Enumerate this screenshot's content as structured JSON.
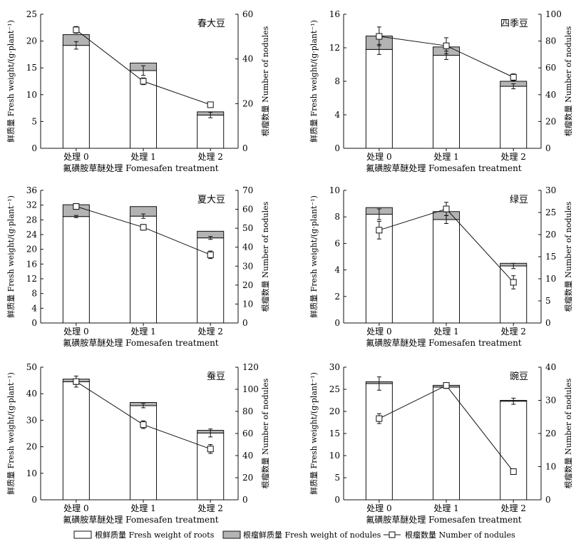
{
  "chart_data": [
    {
      "type": "bar",
      "title": "春大豆",
      "categories": [
        "处理 0",
        "处理 1",
        "处理 2"
      ],
      "xlabel": "氟磺胺草醚处理 Fomesafen treatment",
      "ylabel": "鲜质量 Fresh weight/(g·plant⁻¹)",
      "y2label": "根瘤数量 Number of nodules",
      "ylim": [
        0,
        25
      ],
      "y2lim": [
        0,
        60
      ],
      "yticks": [
        0,
        5,
        10,
        15,
        20,
        25
      ],
      "y2ticks": [
        0,
        20,
        40,
        60
      ],
      "series": [
        {
          "name": "根鲜质量 Fresh weight of roots",
          "values": [
            19.2,
            14.5,
            6.2
          ],
          "errors": [
            0.7,
            0.9,
            0.5
          ]
        },
        {
          "name": "根瘤鲜质量 Fresh weight of nodules",
          "values": [
            2.0,
            1.4,
            0.6
          ]
        },
        {
          "name": "根瘤数量 Number of nodules",
          "values": [
            53.0,
            30.0,
            19.5
          ],
          "errors": [
            1.5,
            1.5,
            0.5
          ]
        }
      ]
    },
    {
      "type": "bar",
      "title": "四季豆",
      "categories": [
        "处理 0",
        "处理 1",
        "处理 2"
      ],
      "xlabel": "氟磺胺草醚处理 Fomesafen treatment",
      "ylabel": "鲜质量 Fresh weight/(g·plant⁻¹)",
      "y2label": "根瘤数量 Number of nodules",
      "ylim": [
        0,
        16
      ],
      "y2lim": [
        0,
        100
      ],
      "yticks": [
        0,
        4,
        8,
        12,
        16
      ],
      "y2ticks": [
        0,
        20,
        40,
        60,
        80,
        100
      ],
      "series": [
        {
          "name": "根鲜质量 Fresh weight of roots",
          "values": [
            11.8,
            11.1,
            7.4
          ],
          "errors": [
            0.6,
            0.5,
            0.3
          ]
        },
        {
          "name": "根瘤鲜质量 Fresh weight of nodules",
          "values": [
            1.6,
            1.0,
            0.6
          ]
        },
        {
          "name": "根瘤数量 Number of nodules",
          "values": [
            83.5,
            76.5,
            53.0
          ],
          "errors": [
            7.0,
            6.0,
            2.5
          ]
        }
      ]
    },
    {
      "type": "bar",
      "title": "夏大豆",
      "categories": [
        "处理 0",
        "处理 1",
        "处理 2"
      ],
      "xlabel": "氟磺胺草醚处理 Fomesafen treatment",
      "ylabel": "鲜质量 Fresh weight/(g·plant⁻¹)",
      "y2label": "根瘤数量 Number of nodules",
      "ylim": [
        0,
        36
      ],
      "y2lim": [
        0,
        70
      ],
      "yticks": [
        0,
        4,
        8,
        12,
        16,
        20,
        24,
        28,
        32,
        36
      ],
      "y2ticks": [
        0,
        10,
        20,
        30,
        40,
        50,
        60,
        70
      ],
      "series": [
        {
          "name": "根鲜质量 Fresh weight of roots",
          "values": [
            28.9,
            29.0,
            23.1
          ],
          "errors": [
            0.3,
            0.6,
            0.4
          ]
        },
        {
          "name": "根瘤鲜质量 Fresh weight of nodules",
          "values": [
            3.2,
            2.6,
            1.8
          ]
        },
        {
          "name": "根瘤数量 Number of nodules",
          "values": [
            61.5,
            50.5,
            36.0
          ],
          "errors": [
            1.5,
            1.5,
            2.0
          ]
        }
      ]
    },
    {
      "type": "bar",
      "title": "绿豆",
      "categories": [
        "处理 0",
        "处理 1",
        "处理 2"
      ],
      "xlabel": "氟磺胺草醚处理 Fomesafen treatment",
      "ylabel": "鲜质量 Fresh weight/(g·plant⁻¹)",
      "y2label": "根瘤数量 Number of nodules",
      "ylim": [
        0,
        10
      ],
      "y2lim": [
        0,
        30
      ],
      "yticks": [
        0,
        2,
        4,
        6,
        8,
        10
      ],
      "y2ticks": [
        0,
        5,
        10,
        15,
        20,
        25,
        30
      ],
      "series": [
        {
          "name": "根鲜质量 Fresh weight of roots",
          "values": [
            8.2,
            7.8,
            4.3
          ],
          "errors": [
            0.4,
            0.3,
            0.2
          ]
        },
        {
          "name": "根瘤鲜质量 Fresh weight of nodules",
          "values": [
            0.5,
            0.6,
            0.2
          ]
        },
        {
          "name": "根瘤数量 Number of nodules",
          "values": [
            21.0,
            25.8,
            9.2
          ],
          "errors": [
            2.0,
            1.5,
            1.5
          ]
        }
      ]
    },
    {
      "type": "bar",
      "title": "蚕豆",
      "categories": [
        "处理 0",
        "处理 1",
        "处理 2"
      ],
      "xlabel": "氟磺胺草醚处理 Fomesafen treatment",
      "ylabel": "鲜质量 Fresh weight/(g·plant⁻¹)",
      "y2label": "根瘤数量 Number of nodules",
      "ylim": [
        0,
        50
      ],
      "y2lim": [
        0,
        120
      ],
      "yticks": [
        0,
        10,
        20,
        30,
        40,
        50
      ],
      "y2ticks": [
        0,
        20,
        40,
        60,
        80,
        100,
        120
      ],
      "series": [
        {
          "name": "根鲜质量 Fresh weight of roots",
          "values": [
            44.5,
            35.5,
            25.2
          ],
          "errors": [
            1.0,
            0.8,
            1.5
          ]
        },
        {
          "name": "根瘤鲜质量 Fresh weight of nodules",
          "values": [
            1.0,
            1.2,
            1.0
          ]
        },
        {
          "name": "根瘤数量 Number of nodules",
          "values": [
            107.0,
            68.0,
            46.0
          ],
          "errors": [
            5.0,
            3.5,
            4.0
          ]
        }
      ]
    },
    {
      "type": "bar",
      "title": "豌豆",
      "categories": [
        "处理 0",
        "处理 1",
        "处理 2"
      ],
      "xlabel": "氟磺胺草醚处理 Fomesafen treatment",
      "ylabel": "鲜质量 Fresh weight/(g·plant⁻¹)",
      "y2label": "根瘤数量 Number of nodules",
      "ylim": [
        0,
        30
      ],
      "y2lim": [
        0,
        40
      ],
      "yticks": [
        0,
        5,
        10,
        15,
        20,
        25,
        30
      ],
      "y2ticks": [
        0,
        10,
        20,
        30,
        40
      ],
      "series": [
        {
          "name": "根鲜质量 Fresh weight of roots",
          "values": [
            26.3,
            25.5,
            22.3
          ],
          "errors": [
            1.5,
            0.3,
            0.7
          ]
        },
        {
          "name": "根瘤鲜质量 Fresh weight of nodules",
          "values": [
            0.4,
            0.4,
            0.2
          ]
        },
        {
          "name": "根瘤数量 Number of nodules",
          "values": [
            24.5,
            34.5,
            8.5
          ],
          "errors": [
            1.5,
            0.7,
            0.3
          ]
        }
      ]
    }
  ],
  "legend": {
    "roots": "根鲜质量 Fresh weight of roots",
    "nodules_weight": "根瘤鲜质量 Fresh weight of nodules",
    "nodules_number": "根瘤数量 Number of nodules"
  },
  "colors": {
    "roots_fill": "#ffffff",
    "nodules_fill": "#b3b3b3",
    "line": "#111111"
  }
}
